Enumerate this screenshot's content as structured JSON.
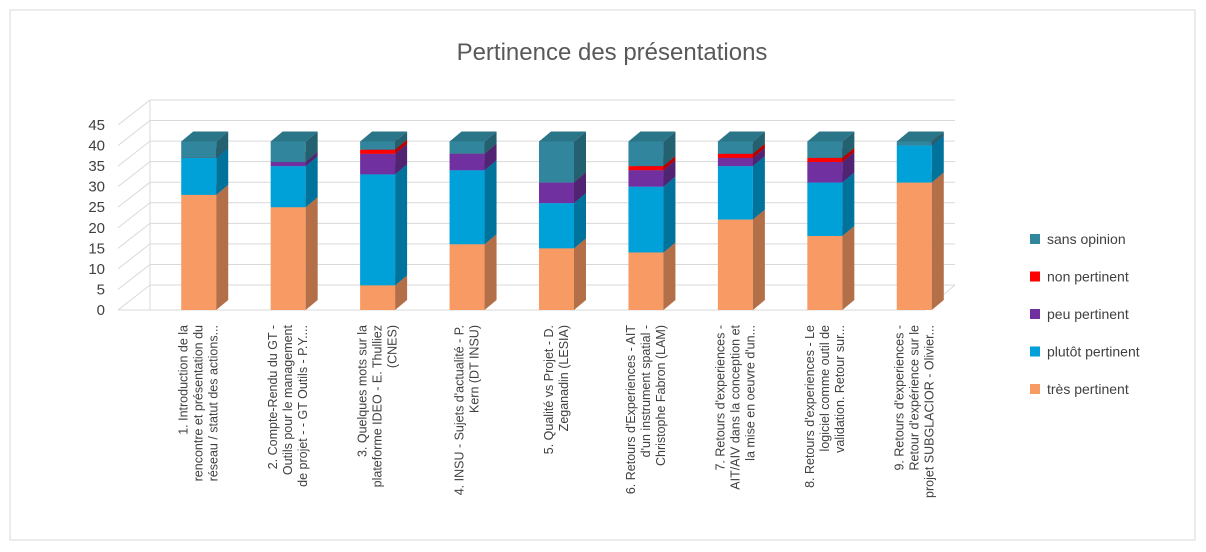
{
  "chart_data": {
    "type": "bar3d_stacked",
    "title": "Pertinence des présentations",
    "categories": [
      "1. Introduction de la\nrencontre et présentation du\nréseau / statut des actions...",
      "2. Compte-Rendu du GT -\nOutils pour le management\nde projet - - GT Outils - P.Y....",
      "3. Quelques mots sur la\nplateforme IDEO - E. Thulliez\n(CNES)",
      "4. INSU - Sujets d'actualité - P.\nKern (DT INSU)",
      "5. Qualité vs Projet - D.\nZeganadin (LESIA)",
      "6. Retours d'Experiences - AIT\nd'un instrument spatial -\nChristophe Fabron (LAM)",
      "7. Retours d'experiences -\nAIT/AIV dans la conception et\nla mise en oeuvre d'un...",
      "8. Retours d'experiences -  Le\nlogiciel comme outil de\nvalidation. Retour sur...",
      "9. Retours d'experiences -\nRetour d'expérience sur le\nprojet SUBGLACIOR - Olivier..."
    ],
    "series": [
      {
        "name": "très pertinent",
        "color": "#f79a64",
        "values": [
          28,
          25,
          6,
          16,
          15,
          14,
          22,
          18,
          31
        ]
      },
      {
        "name": "plutôt pertinent",
        "color": "#00a0d8",
        "values": [
          9,
          10,
          27,
          18,
          11,
          16,
          13,
          13,
          9
        ]
      },
      {
        "name": "peu pertinent",
        "color": "#7030a0",
        "values": [
          0,
          1,
          5,
          4,
          5,
          4,
          2,
          5,
          0
        ]
      },
      {
        "name": "non pertinent",
        "color": "#ff0000",
        "values": [
          0,
          0,
          1,
          0,
          0,
          1,
          1,
          1,
          0
        ]
      },
      {
        "name": "sans opinion",
        "color": "#31859c",
        "values": [
          4,
          5,
          2,
          3,
          10,
          6,
          3,
          4,
          1
        ]
      }
    ],
    "ylim": [
      0,
      45
    ],
    "yticks": [
      0,
      5,
      10,
      15,
      20,
      25,
      30,
      35,
      40,
      45
    ],
    "grid": true,
    "legend": "right"
  }
}
